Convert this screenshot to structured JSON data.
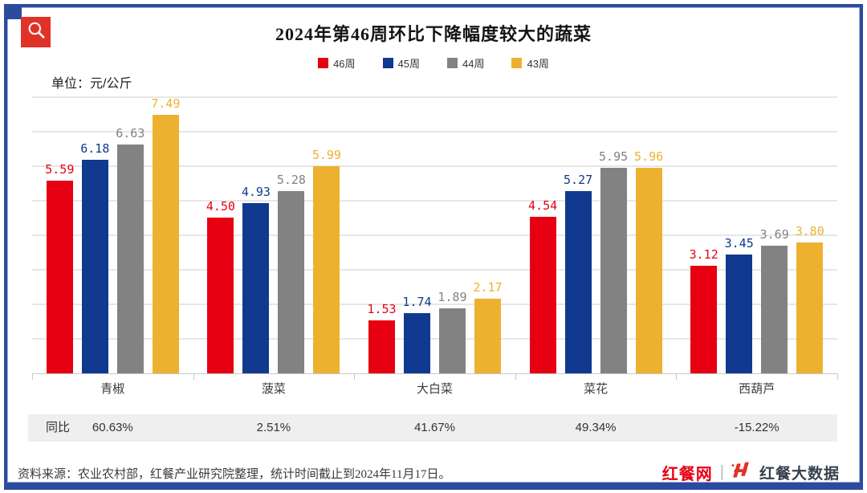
{
  "header": {
    "title": "2024年第46周环比下降幅度较大的蔬菜",
    "unit_label": "单位：元/公斤"
  },
  "chart_data": {
    "type": "bar",
    "title": "2024年第46周环比下降幅度较大的蔬菜",
    "unit": "单位：元/公斤",
    "categories": [
      "青椒",
      "菠菜",
      "大白菜",
      "菜花",
      "西葫芦"
    ],
    "series": [
      {
        "name": "46周",
        "color": "#e60012",
        "values": [
          5.59,
          4.5,
          1.53,
          4.54,
          3.12
        ],
        "labels": [
          "5.59",
          "4.50",
          "1.53",
          "4.54",
          "3.12"
        ]
      },
      {
        "name": "45周",
        "color": "#10398f",
        "values": [
          6.18,
          4.93,
          1.74,
          5.27,
          3.45
        ],
        "labels": [
          "6.18",
          "4.93",
          "1.74",
          "5.27",
          "3.45"
        ]
      },
      {
        "name": "44周",
        "color": "#828282",
        "values": [
          6.63,
          5.28,
          1.89,
          5.95,
          3.69
        ],
        "labels": [
          "6.63",
          "5.28",
          "1.89",
          "5.95",
          "3.69"
        ]
      },
      {
        "name": "43周",
        "color": "#eeb12f",
        "values": [
          7.49,
          5.99,
          2.17,
          5.96,
          3.8
        ],
        "labels": [
          "7.49",
          "5.99",
          "2.17",
          "5.96",
          "3.80"
        ]
      }
    ],
    "ylim": [
      0,
      8
    ],
    "grid_interval": 1,
    "grid_on": true,
    "legend_position": "top",
    "value_labels_on": true
  },
  "yoy": {
    "label": "同比",
    "values": [
      "60.63%",
      "2.51%",
      "41.67%",
      "49.34%",
      "-15.22%"
    ]
  },
  "footer": {
    "source": "资料来源：农业农村部，红餐产业研究院整理，统计时间截止到2024年11月17日。"
  },
  "branding": {
    "site": "红餐网",
    "divider": "|",
    "product": "红餐大数据"
  },
  "colors": {
    "frame_border": "#2b4b9e",
    "corner_red": "#e03227",
    "gridline": "#e7e7e7",
    "axis": "#c8c8c8",
    "yoy_band_bg": "#efefef"
  }
}
